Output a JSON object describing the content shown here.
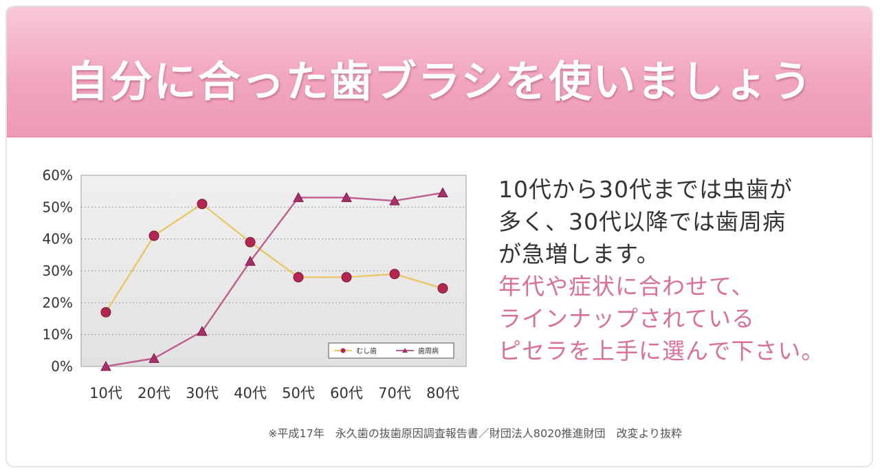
{
  "banner": {
    "title": "自分に合った歯ブラシを使いましょう"
  },
  "chart_data": {
    "type": "line",
    "categories": [
      "10代",
      "20代",
      "30代",
      "40代",
      "50代",
      "60代",
      "70代",
      "80代"
    ],
    "y_ticks": [
      "0%",
      "10%",
      "20%",
      "30%",
      "40%",
      "50%",
      "60%"
    ],
    "ylim": [
      0,
      60
    ],
    "grid": true,
    "legend_position": "bottom-right",
    "series": [
      {
        "name": "むし歯",
        "color": "#e8c86a",
        "marker": "circle",
        "values": [
          17,
          41,
          51,
          39,
          28,
          28,
          29,
          24.5
        ]
      },
      {
        "name": "歯周病",
        "color": "#c0608e",
        "marker": "triangle",
        "values": [
          0,
          2.5,
          11,
          33,
          53,
          53,
          52,
          54.5
        ]
      }
    ]
  },
  "description": {
    "dark_lines": [
      "10代から30代までは虫歯が",
      "多く、30代以降では歯周病",
      "が急増します。"
    ],
    "pink_lines": [
      "年代や症状に合わせて、",
      "ラインナップされている",
      "ピセラを上手に選んで下さい。"
    ]
  },
  "footnote": "※平成17年　永久歯の抜歯原因調査報告書／財団法人8020推進財団　改変より抜粋"
}
